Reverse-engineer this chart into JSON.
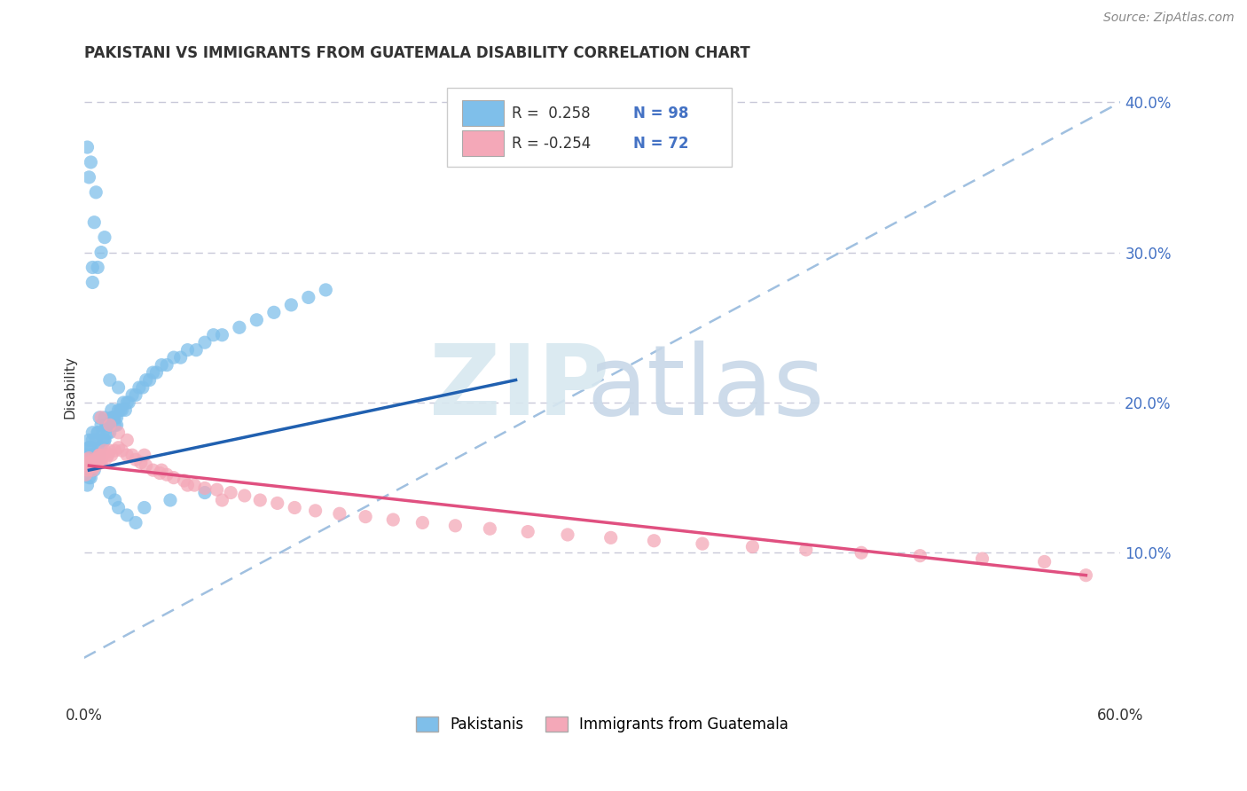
{
  "title": "PAKISTANI VS IMMIGRANTS FROM GUATEMALA DISABILITY CORRELATION CHART",
  "source": "Source: ZipAtlas.com",
  "ylabel": "Disability",
  "xlim": [
    0.0,
    0.6
  ],
  "ylim": [
    0.0,
    0.42
  ],
  "x_tick_positions": [
    0.0,
    0.1,
    0.2,
    0.3,
    0.4,
    0.5,
    0.6
  ],
  "x_tick_labels": [
    "0.0%",
    "",
    "",
    "",
    "",
    "",
    "60.0%"
  ],
  "y_tick_positions": [
    0.1,
    0.2,
    0.3,
    0.4
  ],
  "y_tick_labels": [
    "10.0%",
    "20.0%",
    "30.0%",
    "40.0%"
  ],
  "legend_line1": "R =  0.258   N = 98",
  "legend_line2": "R = -0.254   N = 72",
  "color_blue_scatter": "#7fbfea",
  "color_pink_scatter": "#f4a8b8",
  "color_blue_line": "#2060b0",
  "color_pink_line": "#e05080",
  "color_dash": "#a0c0e0",
  "color_grid": "#c8c8d8",
  "background_color": "#ffffff",
  "text_color": "#333333",
  "axis_color": "#4472c4",
  "pakistanis_x": [
    0.002,
    0.003,
    0.001,
    0.004,
    0.003,
    0.002,
    0.001,
    0.002,
    0.003,
    0.001,
    0.005,
    0.004,
    0.006,
    0.003,
    0.007,
    0.005,
    0.006,
    0.004,
    0.005,
    0.003,
    0.008,
    0.009,
    0.007,
    0.008,
    0.01,
    0.009,
    0.011,
    0.008,
    0.01,
    0.009,
    0.012,
    0.011,
    0.013,
    0.012,
    0.014,
    0.013,
    0.012,
    0.015,
    0.014,
    0.016,
    0.015,
    0.017,
    0.016,
    0.018,
    0.017,
    0.019,
    0.018,
    0.02,
    0.019,
    0.021,
    0.022,
    0.023,
    0.024,
    0.025,
    0.026,
    0.028,
    0.03,
    0.032,
    0.034,
    0.036,
    0.038,
    0.04,
    0.042,
    0.045,
    0.048,
    0.052,
    0.056,
    0.06,
    0.065,
    0.07,
    0.075,
    0.08,
    0.09,
    0.1,
    0.11,
    0.12,
    0.13,
    0.14,
    0.015,
    0.02,
    0.005,
    0.008,
    0.01,
    0.012,
    0.006,
    0.007,
    0.003,
    0.004,
    0.002,
    0.005,
    0.015,
    0.018,
    0.02,
    0.025,
    0.03,
    0.035,
    0.05,
    0.07
  ],
  "pakistanis_y": [
    0.155,
    0.16,
    0.165,
    0.15,
    0.17,
    0.145,
    0.155,
    0.16,
    0.15,
    0.165,
    0.16,
    0.165,
    0.155,
    0.17,
    0.16,
    0.175,
    0.165,
    0.17,
    0.18,
    0.175,
    0.165,
    0.17,
    0.175,
    0.18,
    0.17,
    0.165,
    0.175,
    0.18,
    0.185,
    0.19,
    0.175,
    0.18,
    0.185,
    0.175,
    0.18,
    0.185,
    0.19,
    0.18,
    0.185,
    0.19,
    0.185,
    0.19,
    0.195,
    0.185,
    0.19,
    0.185,
    0.19,
    0.195,
    0.19,
    0.195,
    0.195,
    0.2,
    0.195,
    0.2,
    0.2,
    0.205,
    0.205,
    0.21,
    0.21,
    0.215,
    0.215,
    0.22,
    0.22,
    0.225,
    0.225,
    0.23,
    0.23,
    0.235,
    0.235,
    0.24,
    0.245,
    0.245,
    0.25,
    0.255,
    0.26,
    0.265,
    0.27,
    0.275,
    0.215,
    0.21,
    0.28,
    0.29,
    0.3,
    0.31,
    0.32,
    0.34,
    0.35,
    0.36,
    0.37,
    0.29,
    0.14,
    0.135,
    0.13,
    0.125,
    0.12,
    0.13,
    0.135,
    0.14
  ],
  "guatemala_x": [
    0.002,
    0.003,
    0.004,
    0.001,
    0.005,
    0.003,
    0.002,
    0.004,
    0.003,
    0.005,
    0.006,
    0.007,
    0.008,
    0.009,
    0.01,
    0.008,
    0.009,
    0.01,
    0.011,
    0.012,
    0.013,
    0.014,
    0.015,
    0.016,
    0.018,
    0.02,
    0.022,
    0.025,
    0.028,
    0.03,
    0.033,
    0.036,
    0.04,
    0.044,
    0.048,
    0.052,
    0.058,
    0.064,
    0.07,
    0.077,
    0.085,
    0.093,
    0.102,
    0.112,
    0.122,
    0.134,
    0.148,
    0.163,
    0.179,
    0.196,
    0.215,
    0.235,
    0.257,
    0.28,
    0.305,
    0.33,
    0.358,
    0.387,
    0.418,
    0.45,
    0.484,
    0.52,
    0.556,
    0.58,
    0.01,
    0.015,
    0.02,
    0.025,
    0.035,
    0.045,
    0.06,
    0.08
  ],
  "guatemala_y": [
    0.155,
    0.158,
    0.16,
    0.152,
    0.155,
    0.16,
    0.162,
    0.158,
    0.163,
    0.157,
    0.162,
    0.158,
    0.16,
    0.165,
    0.16,
    0.163,
    0.165,
    0.162,
    0.165,
    0.168,
    0.163,
    0.165,
    0.168,
    0.165,
    0.168,
    0.17,
    0.168,
    0.165,
    0.165,
    0.162,
    0.16,
    0.158,
    0.155,
    0.153,
    0.152,
    0.15,
    0.148,
    0.145,
    0.143,
    0.142,
    0.14,
    0.138,
    0.135,
    0.133,
    0.13,
    0.128,
    0.126,
    0.124,
    0.122,
    0.12,
    0.118,
    0.116,
    0.114,
    0.112,
    0.11,
    0.108,
    0.106,
    0.104,
    0.102,
    0.1,
    0.098,
    0.096,
    0.094,
    0.085,
    0.19,
    0.185,
    0.18,
    0.175,
    0.165,
    0.155,
    0.145,
    0.135
  ],
  "blue_line_x": [
    0.003,
    0.25
  ],
  "blue_line_y": [
    0.155,
    0.215
  ],
  "pink_line_x": [
    0.003,
    0.58
  ],
  "pink_line_y": [
    0.158,
    0.085
  ],
  "dash_line_x": [
    0.0,
    0.6
  ],
  "dash_line_y": [
    0.03,
    0.4
  ]
}
